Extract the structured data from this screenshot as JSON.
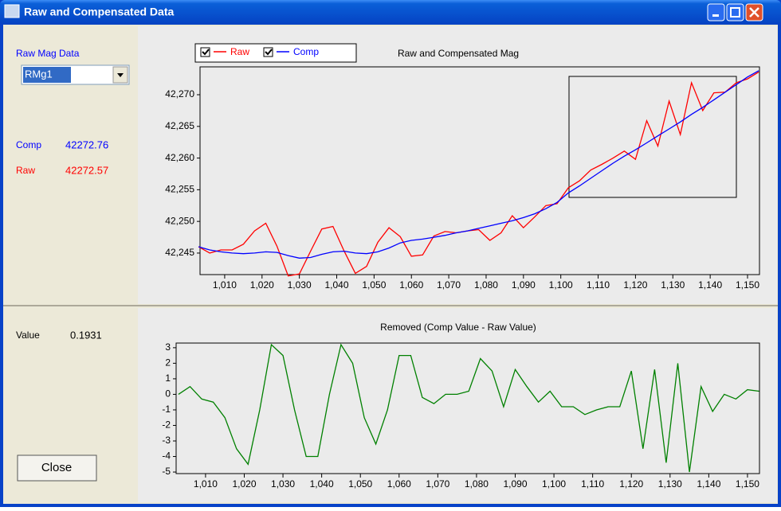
{
  "window": {
    "title": "Raw and Compensated Data"
  },
  "left_panel": {
    "select_label": "Raw Mag Data",
    "select_value": "RMg1",
    "comp_label": "Comp",
    "comp_value": 42272.76,
    "raw_label": "Raw",
    "raw_value": 42272.57,
    "value_label": "Value",
    "value": 0.1931,
    "close_button": "Close"
  },
  "chart_data": [
    {
      "type": "line",
      "title": "Raw and Compensated Mag",
      "legend": "top-left",
      "x": [
        1003,
        1006,
        1009,
        1012,
        1015,
        1018,
        1021,
        1024,
        1027,
        1030,
        1033,
        1036,
        1039,
        1042,
        1045,
        1048,
        1051,
        1054,
        1057,
        1060,
        1063,
        1066,
        1069,
        1072,
        1075,
        1078,
        1081,
        1084,
        1087,
        1090,
        1093,
        1096,
        1099,
        1102,
        1105,
        1108,
        1111,
        1114,
        1117,
        1120,
        1123,
        1126,
        1129,
        1132,
        1135,
        1138,
        1141,
        1144,
        1147,
        1150,
        1153
      ],
      "series": [
        {
          "name": "Raw",
          "color": "#ff0000",
          "values": [
            42246.0,
            42245.0,
            42245.5,
            42245.5,
            42246.4,
            42248.5,
            42249.7,
            42246.1,
            42241.4,
            42241.7,
            42245.3,
            42248.8,
            42249.2,
            42245.3,
            42241.8,
            42242.9,
            42246.7,
            42249.0,
            42247.6,
            42244.5,
            42244.7,
            42247.7,
            42248.4,
            42248.2,
            42248.5,
            42248.7,
            42247.0,
            42248.2,
            42250.9,
            42249.0,
            42250.7,
            42252.5,
            42252.8,
            42255.3,
            42256.4,
            42258.1,
            42259.0,
            42260.0,
            42261.1,
            42259.8,
            42265.9,
            42261.9,
            42269.0,
            42263.7,
            42271.9,
            42267.5,
            42270.3,
            42270.4,
            42271.9,
            42272.5,
            42273.6
          ]
        },
        {
          "name": "Comp",
          "color": "#0000ff",
          "values": [
            42246.0,
            42245.5,
            42245.2,
            42245.0,
            42244.9,
            42245.0,
            42245.2,
            42245.1,
            42244.6,
            42244.2,
            42244.3,
            42244.8,
            42245.2,
            42245.3,
            42245.0,
            42244.9,
            42245.2,
            42245.8,
            42246.6,
            42247.0,
            42247.2,
            42247.5,
            42247.8,
            42248.2,
            42248.5,
            42248.9,
            42249.3,
            42249.7,
            42250.1,
            42250.6,
            42251.2,
            42252.0,
            42253.0,
            42254.5,
            42255.6,
            42256.8,
            42258.0,
            42259.2,
            42260.3,
            42261.3,
            42262.4,
            42263.5,
            42264.6,
            42265.7,
            42266.9,
            42268.0,
            42269.2,
            42270.4,
            42271.6,
            42272.8,
            42273.8
          ]
        }
      ],
      "xlim": [
        1003.4,
        1153.2
      ],
      "xticks": [
        {
          "value": 1010,
          "label": "1,010"
        },
        {
          "value": 1020,
          "label": "1,020"
        },
        {
          "value": 1030,
          "label": "1,030"
        },
        {
          "value": 1040,
          "label": "1,040"
        },
        {
          "value": 1050,
          "label": "1,050"
        },
        {
          "value": 1060,
          "label": "1,060"
        },
        {
          "value": 1070,
          "label": "1,070"
        },
        {
          "value": 1080,
          "label": "1,080"
        },
        {
          "value": 1090,
          "label": "1,090"
        },
        {
          "value": 1100,
          "label": "1,100"
        },
        {
          "value": 1110,
          "label": "1,110"
        },
        {
          "value": 1120,
          "label": "1,120"
        },
        {
          "value": 1130,
          "label": "1,130"
        },
        {
          "value": 1140,
          "label": "1,140"
        },
        {
          "value": 1150,
          "label": "1,150"
        }
      ],
      "ylim": [
        42241.6,
        42274.4
      ],
      "yticks": [
        {
          "value": 42245,
          "label": "42,245"
        },
        {
          "value": 42250,
          "label": "42,250"
        },
        {
          "value": 42255,
          "label": "42,255"
        },
        {
          "value": 42260,
          "label": "42,260"
        },
        {
          "value": 42265,
          "label": "42,265"
        },
        {
          "value": 42270,
          "label": "42,270"
        }
      ]
    },
    {
      "type": "line",
      "title": "Removed  (Comp Value - Raw Value)",
      "x": [
        1003,
        1006,
        1009,
        1012,
        1015,
        1018,
        1021,
        1024,
        1027,
        1030,
        1033,
        1036,
        1039,
        1042,
        1045,
        1048,
        1051,
        1054,
        1057,
        1060,
        1063,
        1066,
        1069,
        1072,
        1075,
        1078,
        1081,
        1084,
        1087,
        1090,
        1093,
        1096,
        1099,
        1102,
        1105,
        1108,
        1111,
        1114,
        1117,
        1120,
        1123,
        1126,
        1129,
        1132,
        1135,
        1138,
        1141,
        1144,
        1147,
        1150,
        1153
      ],
      "series": [
        {
          "color": "#008000",
          "values": [
            0,
            0.5,
            -0.3,
            -0.5,
            -1.5,
            -3.5,
            -4.5,
            -1,
            3.2,
            2.5,
            -1,
            -4,
            -4,
            0,
            3.2,
            2,
            -1.5,
            -3.2,
            -1,
            2.5,
            2.5,
            -0.2,
            -0.6,
            0,
            0,
            0.2,
            2.3,
            1.5,
            -0.8,
            1.6,
            0.5,
            -0.5,
            0.2,
            -0.8,
            -0.8,
            -1.3,
            -1,
            -0.8,
            -0.8,
            1.5,
            -3.5,
            1.6,
            -4.4,
            2,
            -5,
            0.5,
            -1.1,
            0,
            -0.3,
            0.3,
            0.2
          ]
        }
      ],
      "xlim": [
        1002.4,
        1153.1
      ],
      "xticks": [
        {
          "value": 1010,
          "label": "1,010"
        },
        {
          "value": 1020,
          "label": "1,020"
        },
        {
          "value": 1030,
          "label": "1,030"
        },
        {
          "value": 1040,
          "label": "1,040"
        },
        {
          "value": 1050,
          "label": "1,050"
        },
        {
          "value": 1060,
          "label": "1,060"
        },
        {
          "value": 1070,
          "label": "1,070"
        },
        {
          "value": 1080,
          "label": "1,080"
        },
        {
          "value": 1090,
          "label": "1,090"
        },
        {
          "value": 1100,
          "label": "1,100"
        },
        {
          "value": 1110,
          "label": "1,110"
        },
        {
          "value": 1120,
          "label": "1,120"
        },
        {
          "value": 1130,
          "label": "1,130"
        },
        {
          "value": 1140,
          "label": "1,140"
        },
        {
          "value": 1150,
          "label": "1,150"
        }
      ],
      "ylim": [
        -5.1,
        3.3
      ],
      "yticks": [
        -5,
        -4,
        -3,
        -2,
        -1,
        0,
        1,
        2,
        3
      ]
    }
  ]
}
